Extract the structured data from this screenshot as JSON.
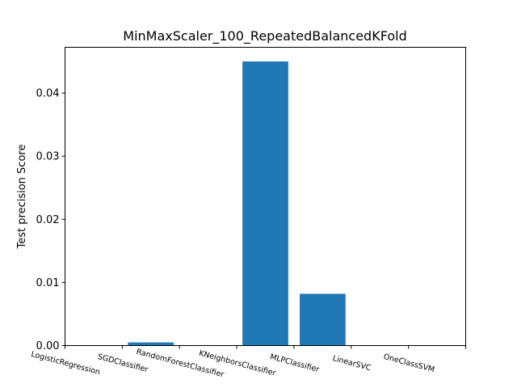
{
  "chart_data": {
    "type": "bar",
    "title": "MinMaxScaler_100_RepeatedBalancedKFold",
    "xlabel": "",
    "ylabel": "Test precision Score",
    "categories": [
      "LogisticRegression",
      "SGDClassifier",
      "RandomForestClassifier",
      "KNeighborsClassifier",
      "MLPClassifier",
      "LinearSVC",
      "OneClassSVM"
    ],
    "values": [
      0.0,
      0.0005,
      0.0,
      0.045,
      0.0082,
      0.0,
      0.0
    ],
    "ylim": [
      0,
      0.04725
    ],
    "yticks": [
      0.0,
      0.01,
      0.02,
      0.03,
      0.04
    ],
    "ytick_labels": [
      "0.00",
      "0.01",
      "0.02",
      "0.03",
      "0.04"
    ],
    "bar_color": "#1f77b4",
    "grid": false,
    "legend": "none"
  }
}
